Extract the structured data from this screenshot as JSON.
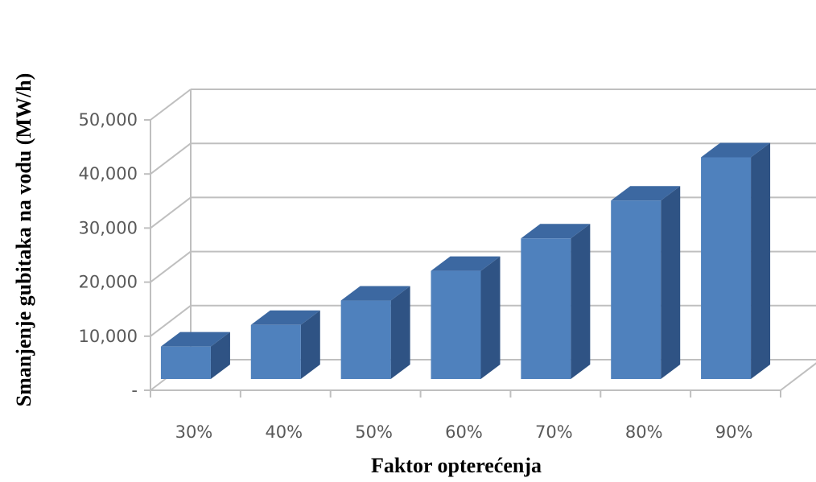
{
  "chart_data": {
    "type": "bar",
    "title": "",
    "xlabel": "Faktor opterećenja",
    "ylabel": "Smanjenje gubitaka na vodu (MW/h)",
    "categories": [
      "30%",
      "40%",
      "50%",
      "60%",
      "70%",
      "80%",
      "90%"
    ],
    "values": [
      6000,
      10000,
      14500,
      20000,
      26000,
      33000,
      41000
    ],
    "ylim": [
      0,
      50000
    ],
    "yticks": [
      0,
      10000,
      20000,
      30000,
      40000,
      50000
    ],
    "ytick_labels": [
      "-",
      "10,000",
      "20,000",
      "30,000",
      "40,000",
      "50,000"
    ],
    "grid": true,
    "style": "3d-column",
    "colors": {
      "bar_front": "#4f81bd",
      "bar_side": "#2f5384",
      "bar_top": "#3c68a1",
      "grid": "#bfbfbf",
      "tick_text": "#595959"
    }
  }
}
